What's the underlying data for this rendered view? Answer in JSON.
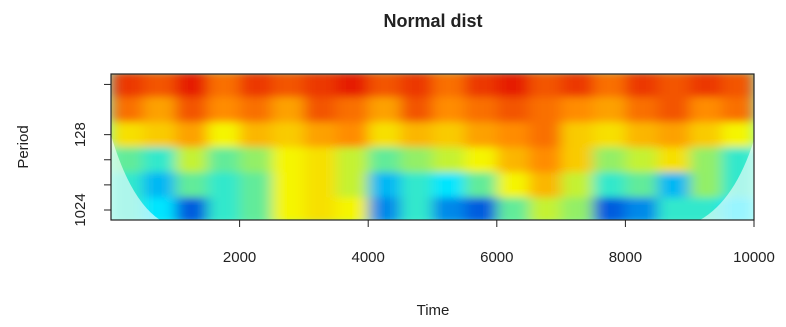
{
  "chart_data": {
    "type": "heatmap",
    "title": "Normal dist",
    "x_label": "Time",
    "y_label": "Period",
    "x": [
      250,
      750,
      1250,
      1750,
      2250,
      2750,
      3250,
      3750,
      4250,
      4750,
      5250,
      5750,
      6250,
      6750,
      7250,
      7750,
      8250,
      8750,
      9250,
      9750
    ],
    "y": [
      32,
      64,
      128,
      256,
      512,
      1024
    ],
    "z": [
      [
        0.9,
        0.85,
        0.95,
        0.8,
        0.9,
        0.85,
        0.9,
        0.95,
        0.85,
        0.9,
        0.8,
        0.9,
        0.95,
        0.85,
        0.9,
        0.8,
        0.9,
        0.85,
        0.9,
        0.85
      ],
      [
        0.8,
        0.7,
        0.85,
        0.75,
        0.8,
        0.7,
        0.85,
        0.8,
        0.7,
        0.85,
        0.75,
        0.8,
        0.85,
        0.8,
        0.75,
        0.7,
        0.8,
        0.85,
        0.75,
        0.8
      ],
      [
        0.55,
        0.6,
        0.7,
        0.5,
        0.65,
        0.6,
        0.7,
        0.75,
        0.55,
        0.65,
        0.6,
        0.7,
        0.75,
        0.8,
        0.6,
        0.55,
        0.65,
        0.7,
        0.6,
        0.5
      ],
      [
        0.35,
        0.3,
        0.45,
        0.35,
        0.4,
        0.5,
        0.55,
        0.45,
        0.35,
        0.4,
        0.45,
        0.5,
        0.65,
        0.75,
        0.6,
        0.4,
        0.45,
        0.55,
        0.4,
        0.3
      ],
      [
        0.3,
        0.2,
        0.35,
        0.3,
        0.35,
        0.5,
        0.55,
        0.45,
        0.2,
        0.3,
        0.25,
        0.35,
        0.5,
        0.65,
        0.45,
        0.3,
        0.35,
        0.2,
        0.4,
        0.3
      ],
      [
        0.3,
        0.25,
        0.1,
        0.3,
        0.35,
        0.5,
        0.55,
        0.5,
        0.15,
        0.3,
        0.15,
        0.1,
        0.35,
        0.45,
        0.4,
        0.1,
        0.15,
        0.3,
        0.3,
        0.25
      ]
    ],
    "zlim": [
      0,
      1
    ],
    "colormap": [
      "#0000c8",
      "#00e5ff",
      "#f5f500",
      "#ff8c00",
      "#e00000"
    ],
    "xlim": [
      0,
      10000
    ],
    "xticks": [
      2000,
      4000,
      6000,
      8000,
      10000
    ],
    "ylim": [
      24,
      1350
    ],
    "ylog": true,
    "yreverse": true,
    "yticks": [
      {
        "value": 32,
        "label": null
      },
      128,
      {
        "value": 256,
        "label": null
      },
      {
        "value": 512,
        "label": null
      },
      1024
    ]
  }
}
